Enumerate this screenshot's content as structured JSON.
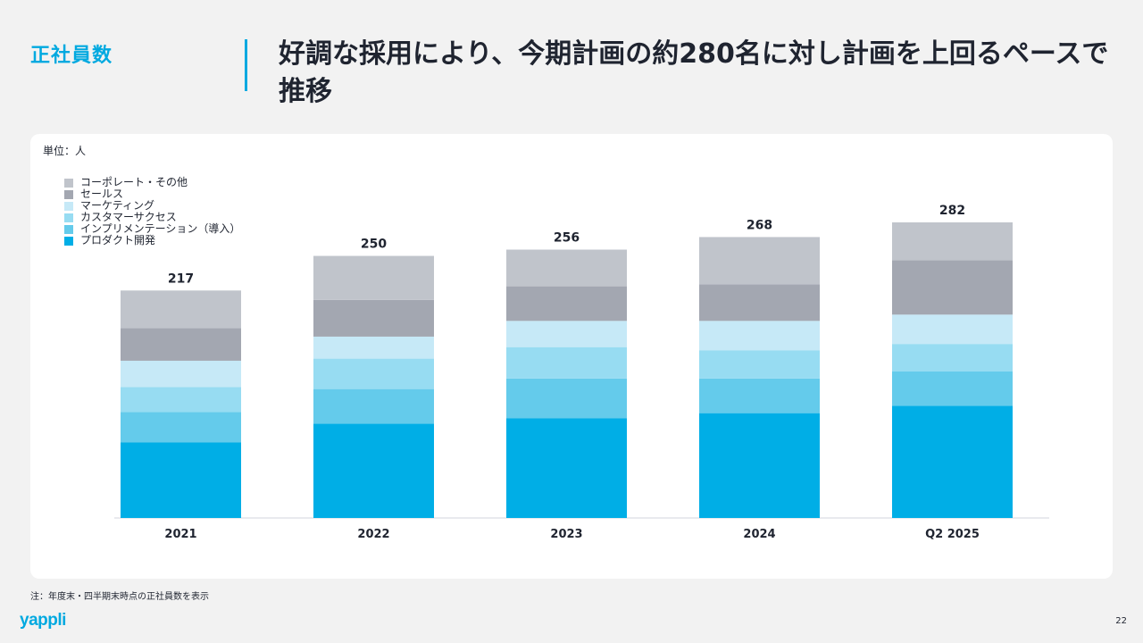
{
  "header": {
    "section_label": "正社員数",
    "headline": "好調な採用により、今期計画の約280名に対し計画を上回るペースで推移"
  },
  "footer": {
    "note": "注：年度末・四半期末時点の正社員数を表示",
    "logo": "yappli",
    "page_number": "22"
  },
  "chart_data": {
    "type": "bar",
    "stacked": true,
    "unit_label": "単位：人",
    "categories": [
      "2021",
      "2022",
      "2023",
      "2024",
      "Q2 2025"
    ],
    "totals": [
      217,
      250,
      256,
      268,
      282
    ],
    "ylim": [
      0,
      282
    ],
    "grid": false,
    "legend_placement": "top-left",
    "series": [
      {
        "name": "プロダクト開発",
        "color": "#00aee6",
        "values": [
          72,
          90,
          95,
          100,
          107
        ]
      },
      {
        "name": "インプリメンテーション（導入）",
        "color": "#64cbeb",
        "values": [
          29,
          33,
          38,
          33,
          33
        ]
      },
      {
        "name": "カスタマーサクセス",
        "color": "#97dcf2",
        "values": [
          24,
          29,
          30,
          27,
          26
        ]
      },
      {
        "name": "マーケティング",
        "color": "#c6e9f7",
        "values": [
          25,
          21,
          25,
          28,
          28
        ]
      },
      {
        "name": "セールス",
        "color": "#a3a7b1",
        "values": [
          31,
          35,
          33,
          35,
          52
        ]
      },
      {
        "name": "コーポレート・その他",
        "color": "#c0c4cb",
        "values": [
          36,
          42,
          35,
          45,
          36
        ]
      }
    ]
  }
}
